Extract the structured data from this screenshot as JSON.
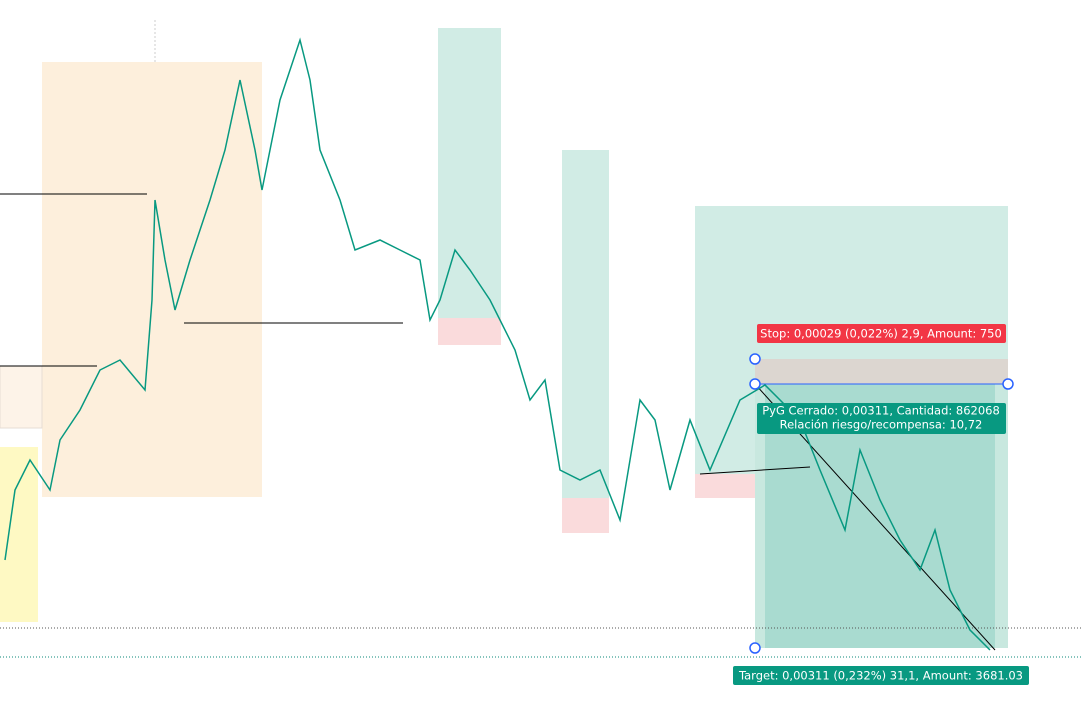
{
  "labels": {
    "stop": "Stop: 0,00029 (0,022%) 2,9, Amount: 750",
    "pnl": "PyG Cerrado: 0,00311, Cantidad: 862068",
    "ratio": "Relación riesgo/recompensa: 10,72",
    "target": "Target: 0,00311 (0,232%) 31,1, Amount: 3681.03"
  }
}
